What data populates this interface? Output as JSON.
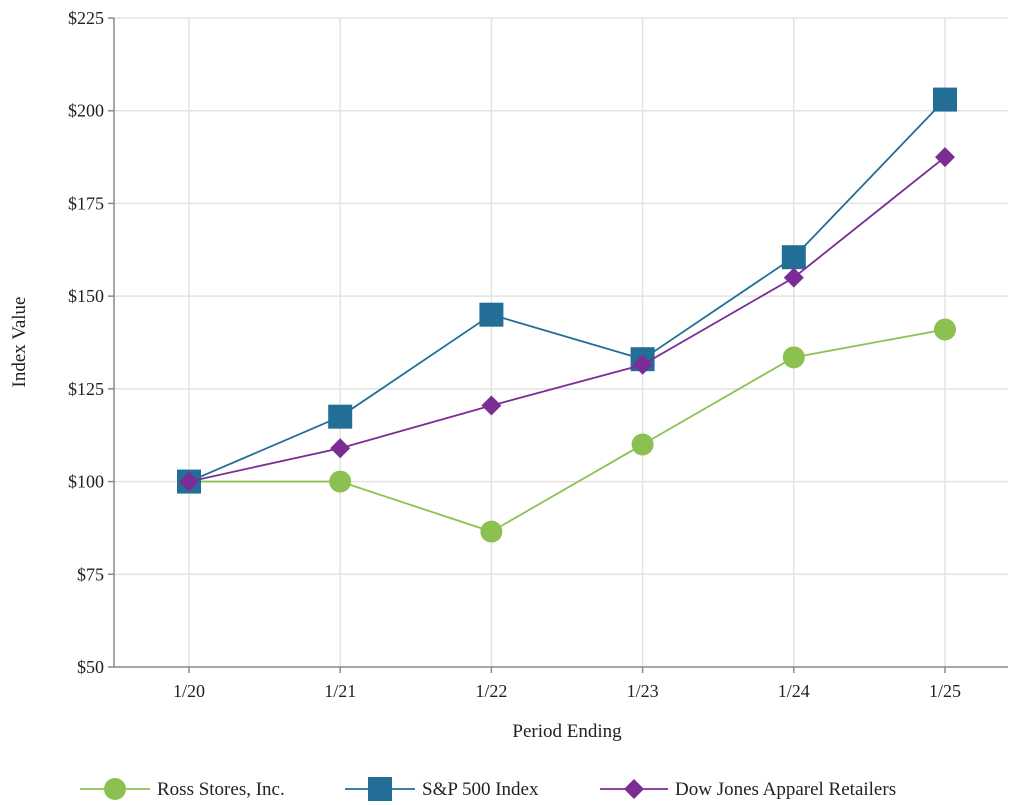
{
  "chart_data": {
    "type": "line",
    "title": "",
    "xlabel": "Period Ending",
    "ylabel": "Index Value",
    "categories": [
      "1/20",
      "1/21",
      "1/22",
      "1/23",
      "1/24",
      "1/25"
    ],
    "ylim": [
      50,
      225
    ],
    "yticks": [
      50,
      75,
      100,
      125,
      150,
      175,
      200,
      225
    ],
    "ytick_labels": [
      "$50",
      "$75",
      "$100",
      "$125",
      "$150",
      "$175",
      "$200",
      "$225"
    ],
    "grid": true,
    "legend_position": "bottom",
    "series": [
      {
        "name": "Ross Stores, Inc.",
        "marker": "circle",
        "color": "#8cc152",
        "values": [
          100,
          100,
          86.5,
          110,
          133.5,
          141
        ]
      },
      {
        "name": "S&P 500 Index",
        "marker": "square",
        "color": "#236e96",
        "values": [
          100,
          117.5,
          145,
          133,
          160.5,
          203
        ]
      },
      {
        "name": "Dow Jones Apparel Retailers",
        "marker": "diamond",
        "color": "#7b2d96",
        "values": [
          100,
          109,
          120.5,
          131.5,
          155,
          187.5
        ]
      }
    ]
  }
}
